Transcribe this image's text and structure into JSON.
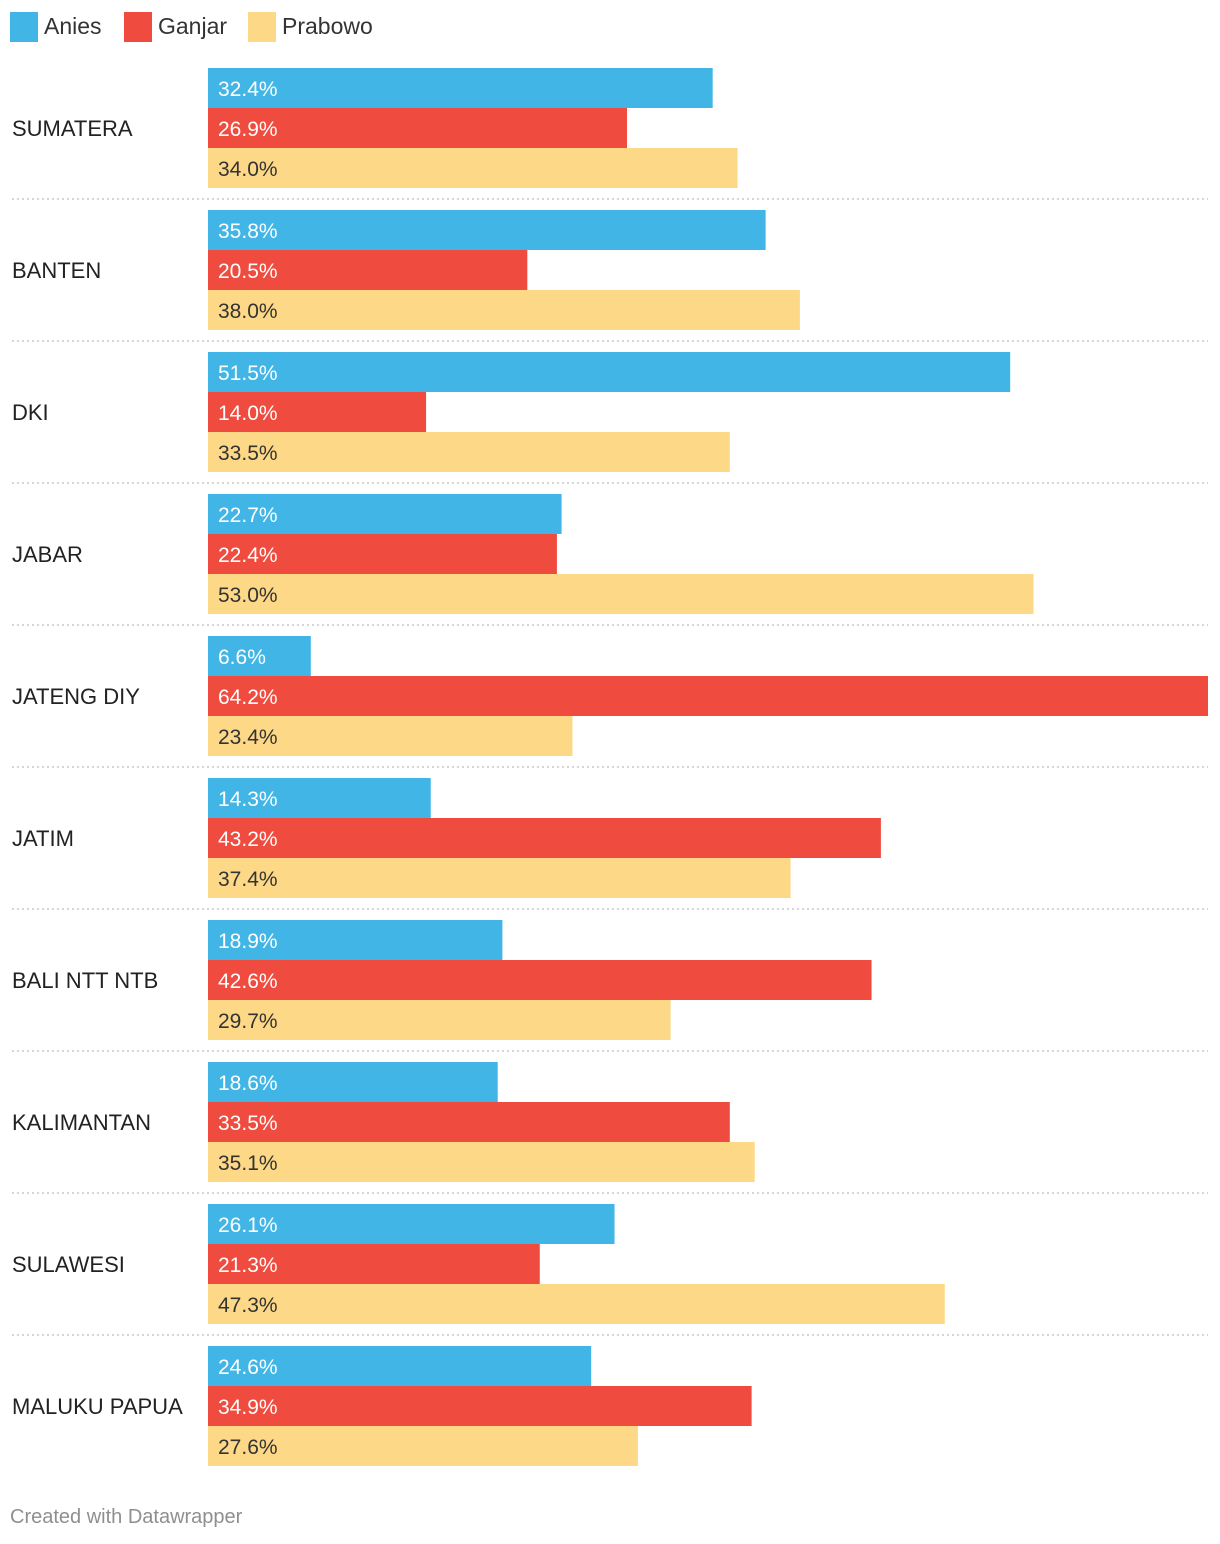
{
  "chart_data": {
    "type": "bar",
    "orientation": "horizontal",
    "grouped": true,
    "legend_position": "top-left",
    "categories": [
      "SUMATERA",
      "BANTEN",
      "DKI",
      "JABAR",
      "JATENG DIY",
      "JATIM",
      "BALI NTT NTB",
      "KALIMANTAN",
      "SULAWESI",
      "MALUKU PAPUA"
    ],
    "series": [
      {
        "name": "Anies",
        "color": "#41b6e6",
        "label_color": "#ffffff",
        "values": [
          32.4,
          35.8,
          51.5,
          22.7,
          6.6,
          14.3,
          18.9,
          18.6,
          26.1,
          24.6
        ]
      },
      {
        "name": "Ganjar",
        "color": "#ef4b3e",
        "label_color": "#ffffff",
        "values": [
          26.9,
          20.5,
          14.0,
          22.4,
          64.2,
          43.2,
          42.6,
          33.5,
          21.3,
          34.9
        ]
      },
      {
        "name": "Prabowo",
        "color": "#fdd886",
        "label_color": "#333333",
        "values": [
          34.0,
          38.0,
          33.5,
          53.0,
          23.4,
          37.4,
          29.7,
          35.1,
          47.3,
          27.6
        ]
      }
    ],
    "value_suffix": "%",
    "xlim": [
      0,
      64.2
    ]
  },
  "footer": {
    "credit": "Created with Datawrapper"
  }
}
